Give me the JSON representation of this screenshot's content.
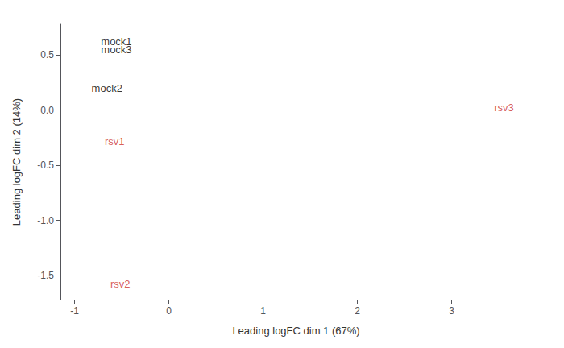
{
  "chart_data": {
    "type": "scatter",
    "x": [
      -0.72,
      -0.72,
      -0.82,
      -0.68,
      3.45,
      -0.62
    ],
    "values": [
      0.62,
      0.55,
      0.2,
      -0.28,
      0.02,
      -1.58
    ],
    "labels": [
      "mock1",
      "mock3",
      "mock2",
      "rsv1",
      "rsv3",
      "rsv2"
    ],
    "colors": [
      "black",
      "black",
      "black",
      "#cc3333",
      "#cc3333",
      "#cc3333"
    ],
    "marker": "none",
    "xlabel": "Leading logFC dim 1 (67%)",
    "ylabel": "Leading logFC dim 2 (14%)",
    "xlim": [
      -1.15,
      3.85
    ],
    "ylim": [
      -1.72,
      0.78
    ],
    "xticks": [
      -1,
      0,
      1,
      2,
      3
    ],
    "yticks": [
      -1.5,
      {
        "value": -1.0,
        "label": "-1.0"
      },
      -0.5,
      {
        "value": 0.0,
        "label": "0.0"
      },
      0.5
    ],
    "grid": false
  }
}
